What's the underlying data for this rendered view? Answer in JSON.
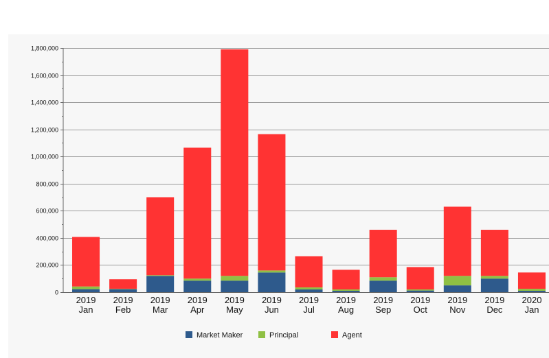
{
  "chart_data": {
    "type": "bar",
    "stacked": true,
    "categories": [
      [
        "2019",
        "Jan"
      ],
      [
        "2019",
        "Feb"
      ],
      [
        "2019",
        "Mar"
      ],
      [
        "2019",
        "Apr"
      ],
      [
        "2019",
        "May"
      ],
      [
        "2019",
        "Jun"
      ],
      [
        "2019",
        "Jul"
      ],
      [
        "2019",
        "Aug"
      ],
      [
        "2019",
        "Sep"
      ],
      [
        "2019",
        "Oct"
      ],
      [
        "2019",
        "Nov"
      ],
      [
        "2019",
        "Dec"
      ],
      [
        "2020",
        "Jan"
      ]
    ],
    "series": [
      {
        "name": "Market Maker",
        "color": "#2e5a8c",
        "values": [
          22000,
          22000,
          120000,
          85000,
          85000,
          145000,
          20000,
          10000,
          85000,
          12000,
          50000,
          100000,
          10000
        ]
      },
      {
        "name": "Principal",
        "color": "#8fc044",
        "values": [
          20000,
          3000,
          5000,
          15000,
          35000,
          15000,
          15000,
          10000,
          25000,
          8000,
          70000,
          20000,
          15000
        ]
      },
      {
        "name": "Agent",
        "color": "#ff3333",
        "values": [
          365000,
          70000,
          575000,
          965000,
          1670000,
          1005000,
          230000,
          145000,
          350000,
          165000,
          510000,
          340000,
          120000
        ]
      }
    ],
    "ylim": [
      0,
      1800000
    ],
    "yticks": [
      0,
      200000,
      400000,
      600000,
      800000,
      1000000,
      1200000,
      1400000,
      1600000,
      1800000
    ],
    "ytick_labels": [
      "0",
      "200,000",
      "400,000",
      "600,000",
      "800,000",
      "1,000,000",
      "1,200,000",
      "1,400,000",
      "1,600,000",
      "1,800,000"
    ],
    "grid": true,
    "legend": "bottom-center"
  }
}
